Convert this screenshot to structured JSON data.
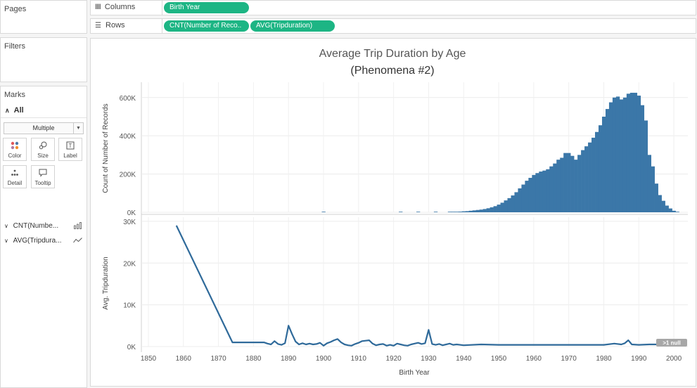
{
  "left": {
    "pages_title": "Pages",
    "filters_title": "Filters",
    "marks_title": "Marks",
    "marks_all": "All",
    "mark_type": "Multiple",
    "mark_buttons": [
      {
        "label": "Color",
        "icon": "color-dots-icon"
      },
      {
        "label": "Size",
        "icon": "size-icon"
      },
      {
        "label": "Label",
        "icon": "label-icon"
      },
      {
        "label": "Detail",
        "icon": "detail-icon"
      },
      {
        "label": "Tooltip",
        "icon": "tooltip-icon"
      }
    ],
    "measure_rows": [
      {
        "label": "CNT(Numbe...",
        "icon": "bar-chart-icon"
      },
      {
        "label": "AVG(Tripdura...",
        "icon": "line-chart-icon"
      }
    ]
  },
  "shelves": {
    "columns_label": "Columns",
    "rows_label": "Rows",
    "columns_pill": "Birth Year",
    "rows_pills": [
      "CNT(Number of Reco..",
      "AVG(Tripduration)"
    ]
  },
  "colors": {
    "pill": "#1db584",
    "bar": "#3b77a8",
    "line": "#2f6a9a",
    "panel_border": "#d9d9d9"
  },
  "chart_data": [
    {
      "type": "bar",
      "title": "Average Trip Duration by Age",
      "subtitle": "(Phenomena #2)",
      "xlabel": "Birth Year",
      "ylabel": "Count of Number of Records",
      "xlim": [
        1848,
        2004
      ],
      "ylim": [
        0,
        680000
      ],
      "y_ticks": [
        {
          "v": 0,
          "label": "0K"
        },
        {
          "v": 200000,
          "label": "200K"
        },
        {
          "v": 400000,
          "label": "400K"
        },
        {
          "v": 600000,
          "label": "600K"
        }
      ],
      "grid": true,
      "x": [
        1900,
        1922,
        1927,
        1932,
        1936,
        1937,
        1938,
        1939,
        1940,
        1941,
        1942,
        1943,
        1944,
        1945,
        1946,
        1947,
        1948,
        1949,
        1950,
        1951,
        1952,
        1953,
        1954,
        1955,
        1956,
        1957,
        1958,
        1959,
        1960,
        1961,
        1962,
        1963,
        1964,
        1965,
        1966,
        1967,
        1968,
        1969,
        1970,
        1971,
        1972,
        1973,
        1974,
        1975,
        1976,
        1977,
        1978,
        1979,
        1980,
        1981,
        1982,
        1983,
        1984,
        1985,
        1986,
        1987,
        1988,
        1989,
        1990,
        1991,
        1992,
        1993,
        1994,
        1995,
        1996,
        1997,
        1998,
        1999,
        2000,
        2001
      ],
      "values": [
        3000,
        800,
        800,
        900,
        1000,
        1500,
        2500,
        3500,
        5000,
        6000,
        8000,
        10000,
        12000,
        14000,
        17000,
        21000,
        26000,
        32000,
        40000,
        50000,
        62000,
        74000,
        88000,
        105000,
        125000,
        145000,
        165000,
        180000,
        195000,
        205000,
        213000,
        218000,
        225000,
        240000,
        255000,
        275000,
        285000,
        310000,
        310000,
        295000,
        275000,
        300000,
        325000,
        345000,
        365000,
        390000,
        420000,
        455000,
        500000,
        540000,
        575000,
        600000,
        605000,
        590000,
        600000,
        620000,
        625000,
        625000,
        610000,
        560000,
        480000,
        300000,
        240000,
        150000,
        90000,
        60000,
        35000,
        20000,
        8000,
        2000
      ]
    },
    {
      "type": "line",
      "xlabel": "Birth Year",
      "ylabel": "Avg. Tripduration",
      "xlim": [
        1848,
        2004
      ],
      "ylim": [
        0,
        31000
      ],
      "y_ticks": [
        {
          "v": 0,
          "label": "0K"
        },
        {
          "v": 10000,
          "label": "10K"
        },
        {
          "v": 20000,
          "label": "20K"
        },
        {
          "v": 30000,
          "label": "30K"
        }
      ],
      "x_ticks": [
        1850,
        1860,
        1870,
        1880,
        1890,
        1900,
        1910,
        1920,
        1930,
        1940,
        1950,
        1960,
        1970,
        1980,
        1990,
        2000
      ],
      "grid": true,
      "null_indicator": ">1 null",
      "x": [
        1858,
        1874,
        1883,
        1884,
        1885,
        1886,
        1887,
        1888,
        1889,
        1890,
        1891,
        1892,
        1893,
        1894,
        1895,
        1896,
        1897,
        1898,
        1899,
        1900,
        1901,
        1902,
        1903,
        1904,
        1905,
        1906,
        1907,
        1908,
        1909,
        1910,
        1911,
        1912,
        1913,
        1914,
        1915,
        1916,
        1917,
        1918,
        1919,
        1920,
        1921,
        1922,
        1923,
        1924,
        1925,
        1926,
        1927,
        1928,
        1929,
        1930,
        1931,
        1932,
        1933,
        1934,
        1935,
        1936,
        1937,
        1938,
        1940,
        1945,
        1950,
        1955,
        1960,
        1965,
        1970,
        1975,
        1980,
        1983,
        1985,
        1986,
        1987,
        1988,
        1990,
        1993,
        1995,
        1997,
        1999,
        2000,
        2001
      ],
      "y": [
        29000,
        1000,
        1000,
        700,
        500,
        1300,
        600,
        400,
        800,
        5000,
        3000,
        1200,
        500,
        800,
        500,
        700,
        500,
        600,
        900,
        200,
        800,
        1100,
        1500,
        1800,
        1000,
        500,
        300,
        200,
        600,
        900,
        1300,
        1400,
        1500,
        700,
        300,
        500,
        600,
        200,
        400,
        200,
        700,
        500,
        300,
        200,
        500,
        700,
        900,
        600,
        800,
        4000,
        600,
        400,
        600,
        300,
        500,
        700,
        400,
        500,
        300,
        500,
        400,
        400,
        400,
        400,
        400,
        400,
        400,
        700,
        500,
        800,
        1500,
        500,
        400,
        500,
        500,
        600,
        800,
        900,
        700
      ]
    }
  ]
}
